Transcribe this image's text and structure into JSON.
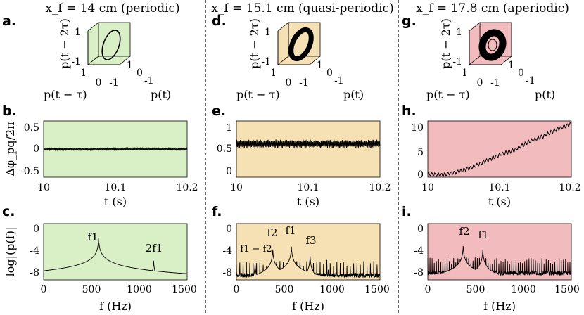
{
  "columns": [
    {
      "title": "x_f = 14 cm (periodic)",
      "labels": {
        "portrait": "a.",
        "timeseries": "b.",
        "spectrum": "c."
      },
      "background": "#d9efc6",
      "portrait": {
        "ylabel": "p(t − 2τ)",
        "xlabel": "p(t − τ)",
        "zlabel": "p(t)",
        "ticks": {
          "vert": [
            "1",
            "-1"
          ],
          "left": [
            "1",
            "-1"
          ],
          "bottom_left": [
            "0",
            "-1"
          ],
          "right": [
            "1",
            "0",
            "-1"
          ]
        },
        "attractor": "limit-cycle"
      },
      "timeseries": {
        "ylabel": "Δφ_pq/2π",
        "xlabel": "t (s)",
        "yticks": [
          "0.5",
          "0",
          "-0.5"
        ],
        "xticks": [
          "10",
          "10.1",
          "10.2"
        ]
      },
      "spectrum": {
        "ylabel": "log|(p(f)|",
        "xlabel": "f (Hz)",
        "yticks": [
          "0",
          "-4",
          "-8"
        ],
        "xticks": [
          "0",
          "500",
          "1000",
          "1500"
        ],
        "annotations": [
          "f1",
          "2f1"
        ]
      }
    },
    {
      "title": "x_f = 15.1 cm (quasi-periodic)",
      "labels": {
        "portrait": "d.",
        "timeseries": "e.",
        "spectrum": "f."
      },
      "background": "#f6e1b4",
      "portrait": {
        "ylabel": "p(t − 2τ)",
        "xlabel": "p(t − τ)",
        "zlabel": "p(t)",
        "ticks": {
          "vert": [
            "1",
            "-1"
          ],
          "left": [
            "1",
            "-1"
          ],
          "bottom_left": [
            "0",
            "-1"
          ],
          "right": [
            "1",
            "0",
            "-1"
          ]
        },
        "attractor": "torus"
      },
      "timeseries": {
        "ylabel": "",
        "xlabel": "t (s)",
        "yticks": [
          "1",
          "0.5",
          "0"
        ],
        "xticks": [
          "10",
          "10.1",
          "10.2"
        ]
      },
      "spectrum": {
        "ylabel": "",
        "xlabel": "f (Hz)",
        "yticks": [
          "0",
          "-4",
          "-8"
        ],
        "xticks": [
          "0",
          "500",
          "1000",
          "1500"
        ],
        "annotations": [
          "f1 − f2",
          "f2",
          "f1",
          "f3"
        ]
      }
    },
    {
      "title": "x_f = 17.8 cm (aperiodic)",
      "labels": {
        "portrait": "g.",
        "timeseries": "h.",
        "spectrum": "i."
      },
      "background": "#f2bcbe",
      "portrait": {
        "ylabel": "p(t − 2τ)",
        "xlabel": "p(t − τ)",
        "zlabel": "p(t)",
        "ticks": {
          "vert": [
            "1",
            "-1"
          ],
          "left": [
            "1",
            "-1"
          ],
          "bottom_left": [
            "0",
            "-1"
          ],
          "right": [
            "1",
            "0",
            "-1"
          ]
        },
        "attractor": "chaotic"
      },
      "timeseries": {
        "ylabel": "",
        "xlabel": "t (s)",
        "yticks": [
          "10",
          "5",
          "0"
        ],
        "xticks": [
          "10",
          "10.1",
          "10.2"
        ]
      },
      "spectrum": {
        "ylabel": "",
        "xlabel": "f (Hz)",
        "yticks": [
          "0",
          "-4",
          "-8"
        ],
        "xticks": [
          "0",
          "500",
          "1000",
          "1500"
        ],
        "annotations": [
          "f2",
          "f1"
        ]
      }
    }
  ],
  "chart_data": [
    {
      "type": "line",
      "panel": "b",
      "xlabel": "t (s)",
      "ylabel": "Δφ_pq/2π",
      "xlim": [
        10,
        10.2
      ],
      "ylim": [
        -0.7,
        0.7
      ],
      "x": [
        10,
        10.05,
        10.1,
        10.15,
        10.2
      ],
      "values": [
        0,
        0,
        0,
        0,
        0
      ]
    },
    {
      "type": "line",
      "panel": "e",
      "xlabel": "t (s)",
      "xlim": [
        10,
        10.2
      ],
      "ylim": [
        -0.15,
        1.15
      ],
      "x": [
        10,
        10.05,
        10.1,
        10.15,
        10.2
      ],
      "values": [
        0.62,
        0.62,
        0.62,
        0.62,
        0.62
      ]
    },
    {
      "type": "line",
      "panel": "h",
      "xlabel": "t (s)",
      "xlim": [
        10,
        10.2
      ],
      "ylim": [
        -0.3,
        12
      ],
      "x": [
        10,
        10.02,
        10.04,
        10.06,
        10.08,
        10.1,
        10.12,
        10.14,
        10.16,
        10.18,
        10.2
      ],
      "values": [
        0.4,
        0.2,
        0.8,
        1.8,
        3.2,
        4.6,
        5.6,
        7.4,
        8.6,
        10.2,
        11.4
      ]
    },
    {
      "type": "line",
      "panel": "c",
      "xlabel": "f (Hz)",
      "ylabel": "log|(p(f)|",
      "xlim": [
        0,
        1500
      ],
      "ylim": [
        -9,
        1
      ],
      "peaks": [
        {
          "f": 575,
          "value": -1.6
        },
        {
          "f": 1150,
          "value": -5.6
        }
      ]
    },
    {
      "type": "line",
      "panel": "f",
      "xlabel": "f (Hz)",
      "xlim": [
        0,
        1500
      ],
      "ylim": [
        -9,
        1
      ],
      "peaks": [
        {
          "f": 195,
          "value": -6.2
        },
        {
          "f": 380,
          "value": -3.6
        },
        {
          "f": 575,
          "value": -3.1
        },
        {
          "f": 770,
          "value": -4.8
        },
        {
          "f": 960,
          "value": -7.2
        }
      ]
    },
    {
      "type": "line",
      "panel": "i",
      "xlabel": "f (Hz)",
      "xlim": [
        0,
        1500
      ],
      "ylim": [
        -9,
        1
      ],
      "peaks": [
        {
          "f": 370,
          "value": -3.0
        },
        {
          "f": 575,
          "value": -3.6
        }
      ]
    }
  ]
}
